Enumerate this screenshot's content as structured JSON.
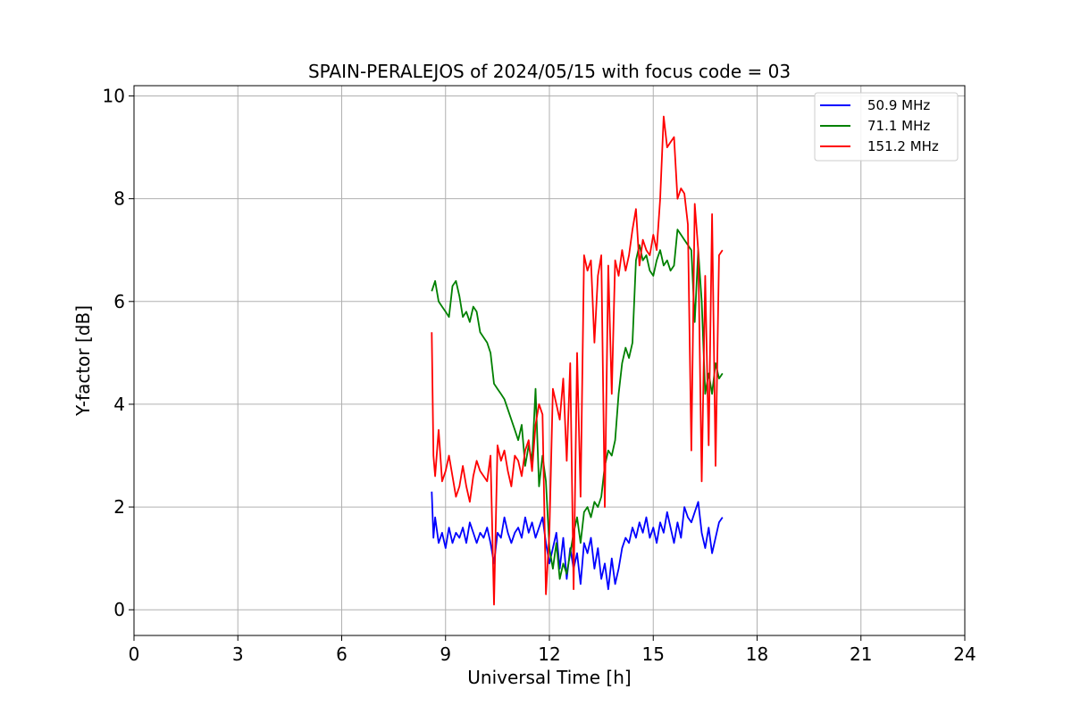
{
  "chart_data": {
    "type": "line",
    "title": "SPAIN-PERALEJOS of 2024/05/15 with focus code = 03",
    "xlabel": "Universal Time [h]",
    "ylabel": "Y-factor [dB]",
    "xlim": [
      0,
      24
    ],
    "ylim": [
      -0.5,
      10.2
    ],
    "xticks": [
      0,
      3,
      6,
      9,
      12,
      15,
      18,
      21,
      24
    ],
    "yticks": [
      0,
      2,
      4,
      6,
      8,
      10
    ],
    "grid": true,
    "legend_position": "top-right",
    "series": [
      {
        "name": "50.9 MHz",
        "color": "#0000ff",
        "x": [
          8.6,
          8.65,
          8.7,
          8.8,
          8.9,
          9.0,
          9.1,
          9.2,
          9.3,
          9.4,
          9.5,
          9.6,
          9.7,
          9.8,
          9.9,
          10.0,
          10.1,
          10.2,
          10.3,
          10.4,
          10.5,
          10.6,
          10.7,
          10.8,
          10.9,
          11.0,
          11.1,
          11.2,
          11.3,
          11.4,
          11.5,
          11.6,
          11.7,
          11.8,
          11.9,
          12.0,
          12.1,
          12.2,
          12.3,
          12.4,
          12.5,
          12.6,
          12.7,
          12.8,
          12.9,
          13.0,
          13.1,
          13.2,
          13.3,
          13.4,
          13.5,
          13.6,
          13.7,
          13.8,
          13.9,
          14.0,
          14.1,
          14.2,
          14.3,
          14.4,
          14.5,
          14.6,
          14.7,
          14.8,
          14.9,
          15.0,
          15.1,
          15.2,
          15.3,
          15.4,
          15.5,
          15.6,
          15.7,
          15.8,
          15.9,
          16.0,
          16.1,
          16.2,
          16.3,
          16.4,
          16.5,
          16.6,
          16.7,
          16.8,
          16.9,
          17.0
        ],
        "y": [
          2.3,
          1.4,
          1.8,
          1.3,
          1.5,
          1.2,
          1.6,
          1.3,
          1.5,
          1.4,
          1.6,
          1.3,
          1.7,
          1.5,
          1.3,
          1.5,
          1.4,
          1.6,
          1.3,
          0.9,
          1.5,
          1.4,
          1.8,
          1.5,
          1.3,
          1.5,
          1.6,
          1.4,
          1.8,
          1.5,
          1.7,
          1.4,
          1.6,
          1.8,
          1.3,
          0.9,
          1.2,
          1.5,
          0.8,
          1.4,
          0.6,
          1.2,
          0.8,
          1.1,
          0.5,
          1.3,
          1.1,
          1.4,
          0.8,
          1.2,
          0.6,
          0.9,
          0.4,
          1.0,
          0.5,
          0.8,
          1.2,
          1.4,
          1.3,
          1.6,
          1.4,
          1.7,
          1.5,
          1.8,
          1.4,
          1.6,
          1.3,
          1.7,
          1.5,
          1.9,
          1.6,
          1.3,
          1.7,
          1.4,
          2.0,
          1.8,
          1.7,
          1.9,
          2.1,
          1.5,
          1.2,
          1.6,
          1.1,
          1.4,
          1.7,
          1.8
        ]
      },
      {
        "name": "71.1 MHz",
        "color": "#008000",
        "x": [
          8.6,
          8.7,
          8.8,
          8.9,
          9.0,
          9.1,
          9.2,
          9.3,
          9.4,
          9.5,
          9.6,
          9.7,
          9.8,
          9.9,
          10.0,
          10.1,
          10.2,
          10.3,
          10.4,
          10.5,
          10.6,
          10.7,
          10.8,
          10.9,
          11.0,
          11.1,
          11.2,
          11.3,
          11.4,
          11.5,
          11.6,
          11.7,
          11.8,
          11.9,
          12.0,
          12.1,
          12.2,
          12.3,
          12.4,
          12.5,
          12.6,
          12.7,
          12.8,
          12.9,
          13.0,
          13.1,
          13.2,
          13.3,
          13.4,
          13.5,
          13.6,
          13.7,
          13.8,
          13.9,
          14.0,
          14.1,
          14.2,
          14.3,
          14.4,
          14.5,
          14.6,
          14.7,
          14.8,
          14.9,
          15.0,
          15.1,
          15.2,
          15.3,
          15.4,
          15.5,
          15.6,
          15.7,
          15.8,
          15.9,
          16.0,
          16.1,
          16.2,
          16.3,
          16.4,
          16.5,
          16.6,
          16.7,
          16.8,
          16.9,
          17.0
        ],
        "y": [
          6.2,
          6.4,
          6.0,
          5.9,
          5.8,
          5.7,
          6.3,
          6.4,
          6.1,
          5.7,
          5.8,
          5.6,
          5.9,
          5.8,
          5.4,
          5.3,
          5.2,
          5.0,
          4.4,
          4.3,
          4.2,
          4.1,
          3.9,
          3.7,
          3.5,
          3.3,
          3.6,
          2.8,
          3.2,
          2.9,
          4.3,
          2.4,
          3.0,
          2.5,
          1.2,
          0.8,
          1.3,
          0.6,
          0.9,
          0.7,
          1.1,
          1.5,
          1.8,
          1.3,
          1.9,
          2.0,
          1.8,
          2.1,
          2.0,
          2.2,
          2.8,
          3.1,
          3.0,
          3.3,
          4.2,
          4.8,
          5.1,
          4.9,
          5.2,
          6.8,
          7.1,
          6.8,
          6.9,
          6.6,
          6.5,
          6.8,
          7.0,
          6.7,
          6.8,
          6.6,
          6.7,
          7.4,
          7.3,
          7.2,
          7.1,
          7.0,
          5.6,
          7.0,
          6.0,
          4.2,
          4.6,
          4.2,
          4.8,
          4.5,
          4.6
        ]
      },
      {
        "name": "151.2 MHz",
        "color": "#ff0000",
        "x": [
          8.6,
          8.65,
          8.7,
          8.8,
          8.9,
          9.0,
          9.1,
          9.2,
          9.3,
          9.4,
          9.5,
          9.6,
          9.7,
          9.8,
          9.9,
          10.0,
          10.1,
          10.2,
          10.3,
          10.4,
          10.5,
          10.6,
          10.7,
          10.8,
          10.9,
          11.0,
          11.1,
          11.2,
          11.3,
          11.4,
          11.5,
          11.6,
          11.7,
          11.8,
          11.9,
          12.0,
          12.1,
          12.2,
          12.3,
          12.4,
          12.5,
          12.6,
          12.7,
          12.8,
          12.9,
          13.0,
          13.1,
          13.2,
          13.3,
          13.4,
          13.5,
          13.6,
          13.7,
          13.8,
          13.9,
          14.0,
          14.1,
          14.2,
          14.3,
          14.4,
          14.5,
          14.6,
          14.7,
          14.8,
          14.9,
          15.0,
          15.1,
          15.2,
          15.3,
          15.4,
          15.5,
          15.6,
          15.7,
          15.8,
          15.9,
          16.0,
          16.1,
          16.2,
          16.3,
          16.4,
          16.5,
          16.6,
          16.7,
          16.8,
          16.9,
          17.0
        ],
        "y": [
          5.4,
          3.0,
          2.6,
          3.5,
          2.5,
          2.7,
          3.0,
          2.6,
          2.2,
          2.4,
          2.8,
          2.4,
          2.1,
          2.6,
          2.9,
          2.7,
          2.6,
          2.5,
          3.0,
          0.1,
          3.2,
          2.9,
          3.1,
          2.7,
          2.4,
          3.0,
          2.9,
          2.6,
          3.1,
          3.3,
          2.7,
          3.6,
          4.0,
          3.8,
          0.3,
          1.5,
          4.3,
          4.0,
          3.7,
          4.5,
          2.9,
          4.8,
          0.4,
          5.0,
          2.2,
          6.9,
          6.6,
          6.8,
          5.2,
          6.5,
          6.9,
          2.0,
          6.7,
          4.2,
          6.8,
          6.5,
          7.0,
          6.6,
          6.9,
          7.4,
          7.8,
          6.7,
          7.2,
          7.0,
          6.9,
          7.3,
          7.0,
          8.0,
          9.6,
          9.0,
          9.1,
          9.2,
          8.0,
          8.2,
          8.1,
          7.5,
          3.1,
          7.9,
          7.0,
          2.5,
          6.5,
          3.2,
          7.7,
          2.8,
          6.9,
          7.0
        ]
      }
    ]
  }
}
